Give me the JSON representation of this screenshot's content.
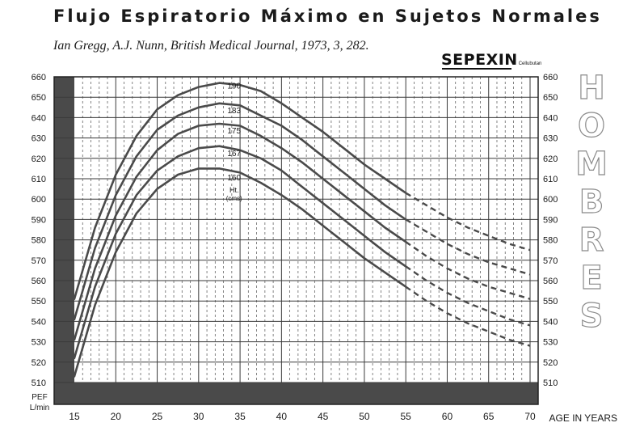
{
  "title": "Flujo Espiratorio Máximo en Sujetos Normales",
  "subtitle": "Ian Gregg, A.J. Nunn, British Medical Journal, 1973, 3, 282.",
  "logo": {
    "name": "SEPEXIN",
    "sub": "Cellubutan"
  },
  "side_letters": [
    "H",
    "O",
    "M",
    "B",
    "R",
    "E",
    "S"
  ],
  "colors": {
    "grid_major": "#3a3a3a",
    "grid_minor": "#666666",
    "band": "#4a4a4a",
    "curve": "#4a4a4a",
    "text": "#1a1a1a"
  },
  "chart_data": {
    "type": "line",
    "title": "Flujo Espiratorio Máximo en Sujetos Normales",
    "xlabel": "AGE IN YEARS",
    "ylabel": "PEF\nL/min",
    "xlim": [
      15,
      70
    ],
    "ylim": [
      510,
      660
    ],
    "x_ticks": [
      15,
      20,
      25,
      30,
      35,
      40,
      45,
      50,
      55,
      60,
      65,
      70
    ],
    "y_ticks": [
      510,
      520,
      530,
      540,
      550,
      560,
      570,
      580,
      590,
      600,
      610,
      620,
      630,
      640,
      650,
      660
    ],
    "x_tick_labels": [
      "15",
      "20",
      "25",
      "30",
      "35",
      "40",
      "45",
      "50",
      "55",
      "60",
      "65",
      "70"
    ],
    "y_tick_labels": [
      "510",
      "520",
      "530",
      "540",
      "550",
      "560",
      "570",
      "580",
      "590",
      "600",
      "610",
      "620",
      "630",
      "640",
      "650",
      "660"
    ],
    "series_label_title": "Ht. (cms)",
    "series_label_title_lines": [
      "Ht.",
      "(cms)"
    ],
    "dashed_from_x": 55,
    "series": [
      {
        "name": "190",
        "x": [
          15,
          17.5,
          20,
          22.5,
          25,
          27.5,
          30,
          32.5,
          35,
          37.5,
          40,
          42.5,
          45,
          47.5,
          50,
          52.5,
          55,
          57.5,
          60,
          62.5,
          65,
          67.5,
          70
        ],
        "values": [
          551,
          586,
          612,
          631,
          644,
          651,
          655,
          657,
          656,
          653,
          647,
          640,
          633,
          625,
          617,
          610,
          603,
          597,
          591,
          586,
          582,
          578,
          575
        ]
      },
      {
        "name": "183",
        "x": [
          15,
          17.5,
          20,
          22.5,
          25,
          27.5,
          30,
          32.5,
          35,
          37.5,
          40,
          42.5,
          45,
          47.5,
          50,
          52.5,
          55,
          57.5,
          60,
          62.5,
          65,
          67.5,
          70
        ],
        "values": [
          541,
          576,
          602,
          621,
          634,
          641,
          645,
          647,
          646,
          641,
          636,
          629,
          621,
          613,
          605,
          597,
          590,
          584,
          578,
          573,
          569,
          566,
          563
        ]
      },
      {
        "name": "175",
        "x": [
          15,
          17.5,
          20,
          22.5,
          25,
          27.5,
          30,
          32.5,
          35,
          37.5,
          40,
          42.5,
          45,
          47.5,
          50,
          52.5,
          55,
          57.5,
          60,
          62.5,
          65,
          67.5,
          70
        ],
        "values": [
          531,
          566,
          592,
          611,
          624,
          632,
          636,
          637,
          636,
          631,
          625,
          618,
          610,
          602,
          594,
          586,
          579,
          572,
          566,
          561,
          557,
          554,
          551
        ]
      },
      {
        "name": "167",
        "x": [
          15,
          17.5,
          20,
          22.5,
          25,
          27.5,
          30,
          32.5,
          35,
          37.5,
          40,
          42.5,
          45,
          47.5,
          50,
          52.5,
          55,
          57.5,
          60,
          62.5,
          65,
          67.5,
          70
        ],
        "values": [
          522,
          557,
          583,
          602,
          614,
          621,
          625,
          626,
          624,
          620,
          614,
          606,
          598,
          590,
          582,
          574,
          567,
          560,
          554,
          549,
          545,
          541,
          538
        ]
      },
      {
        "name": "160",
        "x": [
          15,
          17.5,
          20,
          22.5,
          25,
          27.5,
          30,
          32.5,
          35,
          37.5,
          40,
          42.5,
          45,
          47.5,
          50,
          52.5,
          55,
          57.5,
          60,
          62.5,
          65,
          67.5,
          70
        ],
        "values": [
          513,
          548,
          574,
          593,
          605,
          612,
          615,
          615,
          613,
          608,
          602,
          595,
          587,
          579,
          571,
          564,
          557,
          550,
          544,
          539,
          535,
          531,
          528
        ]
      }
    ]
  }
}
